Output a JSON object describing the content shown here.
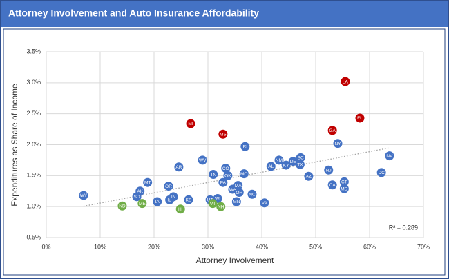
{
  "chart_data": {
    "type": "scatter",
    "title": "Attorney Involvement and Auto Insurance Affordability",
    "x_label": "Attorney Involvement",
    "y_label": "Expenditures as Share of Income",
    "annotation": "R² = 0.289",
    "point_labels": [
      "WY",
      "ND",
      "SD",
      "AK",
      "ME",
      "MT",
      "IA",
      "ID",
      "IN",
      "OR",
      "AR",
      "HI",
      "KS",
      "MI",
      "WV",
      "TN",
      "UT",
      "WI",
      "VT",
      "NH",
      "PA",
      "OK",
      "CO",
      "MS",
      "WA",
      "MA",
      "OH",
      "MN",
      "MO",
      "RI",
      "NC",
      "VA",
      "AL",
      "NM",
      "KY",
      "DE",
      "SC",
      "TX",
      "AZ",
      "NJ",
      "GA",
      "CA",
      "NY",
      "LA",
      "CT",
      "MD",
      "FL",
      "DC",
      "NV"
    ],
    "x": [
      6.9,
      14.1,
      16.8,
      17.4,
      17.8,
      18.8,
      20.6,
      22.9,
      23.6,
      22.7,
      24.6,
      24.9,
      26.4,
      26.8,
      29.0,
      31.0,
      30.4,
      31.8,
      30.9,
      32.4,
      32.8,
      33.7,
      33.3,
      32.8,
      34.6,
      35.6,
      35.8,
      35.3,
      36.7,
      36.9,
      38.2,
      40.5,
      41.7,
      43.2,
      44.5,
      45.8,
      47.2,
      47.1,
      48.7,
      52.4,
      53.1,
      53.1,
      54.1,
      55.5,
      55.3,
      55.3,
      58.2,
      62.2,
      63.7
    ],
    "values": [
      1.18,
      1.01,
      1.16,
      1.25,
      1.05,
      1.39,
      1.08,
      1.11,
      1.16,
      1.33,
      1.64,
      0.96,
      1.11,
      2.34,
      1.75,
      1.52,
      1.11,
      1.13,
      1.05,
      1.0,
      1.39,
      1.5,
      1.62,
      2.17,
      1.28,
      1.34,
      1.23,
      1.08,
      1.53,
      1.97,
      1.2,
      1.06,
      1.65,
      1.75,
      1.67,
      1.73,
      1.79,
      1.68,
      1.49,
      1.59,
      2.23,
      1.35,
      2.02,
      3.02,
      1.4,
      1.29,
      2.43,
      1.55,
      1.82
    ],
    "colors": [
      "#4472c4",
      "#70ad47",
      "#4472c4",
      "#4472c4",
      "#70ad47",
      "#4472c4",
      "#4472c4",
      "#4472c4",
      "#4472c4",
      "#4472c4",
      "#4472c4",
      "#70ad47",
      "#4472c4",
      "#c00000",
      "#4472c4",
      "#4472c4",
      "#4472c4",
      "#4472c4",
      "#70ad47",
      "#70ad47",
      "#4472c4",
      "#4472c4",
      "#4472c4",
      "#c00000",
      "#4472c4",
      "#4472c4",
      "#4472c4",
      "#4472c4",
      "#4472c4",
      "#4472c4",
      "#4472c4",
      "#4472c4",
      "#4472c4",
      "#4472c4",
      "#4472c4",
      "#4472c4",
      "#4472c4",
      "#4472c4",
      "#4472c4",
      "#4472c4",
      "#c00000",
      "#4472c4",
      "#4472c4",
      "#c00000",
      "#4472c4",
      "#4472c4",
      "#c00000",
      "#4472c4",
      "#4472c4"
    ],
    "xlim": [
      0,
      70
    ],
    "xticks": [
      {
        "value": 0,
        "label": "0%"
      },
      {
        "value": 10,
        "label": "10%"
      },
      {
        "value": 20,
        "label": "20%"
      },
      {
        "value": 30,
        "label": "30%"
      },
      {
        "value": 40,
        "label": "40%"
      },
      {
        "value": 50,
        "label": "50%"
      },
      {
        "value": 60,
        "label": "60%"
      },
      {
        "value": 70,
        "label": "70%"
      }
    ],
    "ylim": [
      0.5,
      3.5
    ],
    "yticks": [
      {
        "value": 0.5,
        "label": "0.5%"
      },
      {
        "value": 1.0,
        "label": "1.0%"
      },
      {
        "value": 1.5,
        "label": "1.5%"
      },
      {
        "value": 2.0,
        "label": "2.0%"
      },
      {
        "value": 2.5,
        "label": "2.5%"
      },
      {
        "value": 3.0,
        "label": "3.0%"
      },
      {
        "value": 3.5,
        "label": "3.5%"
      }
    ],
    "grid": true,
    "trendline": true
  }
}
